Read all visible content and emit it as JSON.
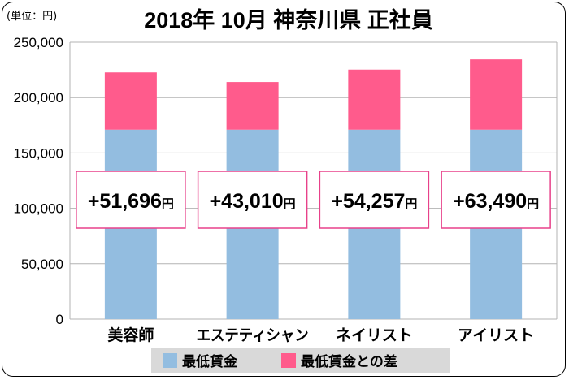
{
  "chart_data": {
    "type": "bar",
    "stacked": true,
    "title": "2018年 10月 神奈川県 正社員",
    "unit_label": "(単位：円)",
    "categories": [
      "美容師",
      "エステティシャン",
      "ネイリスト",
      "アイリスト"
    ],
    "series": [
      {
        "name": "最低賃金",
        "color": "#93bde0",
        "values": [
          171000,
          171000,
          171000,
          171000
        ]
      },
      {
        "name": "最低賃金との差",
        "color": "#ff5b8c",
        "values": [
          51696,
          43010,
          54257,
          63490
        ]
      }
    ],
    "callouts": [
      "+51,696円",
      "+43,010円",
      "+54,257円",
      "+63,490円"
    ],
    "callout_number": [
      "+51,696",
      "+43,010",
      "+54,257",
      "+63,490"
    ],
    "callout_unit": "円",
    "ylim": [
      0,
      250000
    ],
    "yticks": [
      0,
      50000,
      100000,
      150000,
      200000,
      250000
    ],
    "ytick_labels": [
      "0",
      "50,000",
      "100,000",
      "150,000",
      "200,000",
      "250,000"
    ],
    "grid": true,
    "legend_position": "bottom"
  }
}
